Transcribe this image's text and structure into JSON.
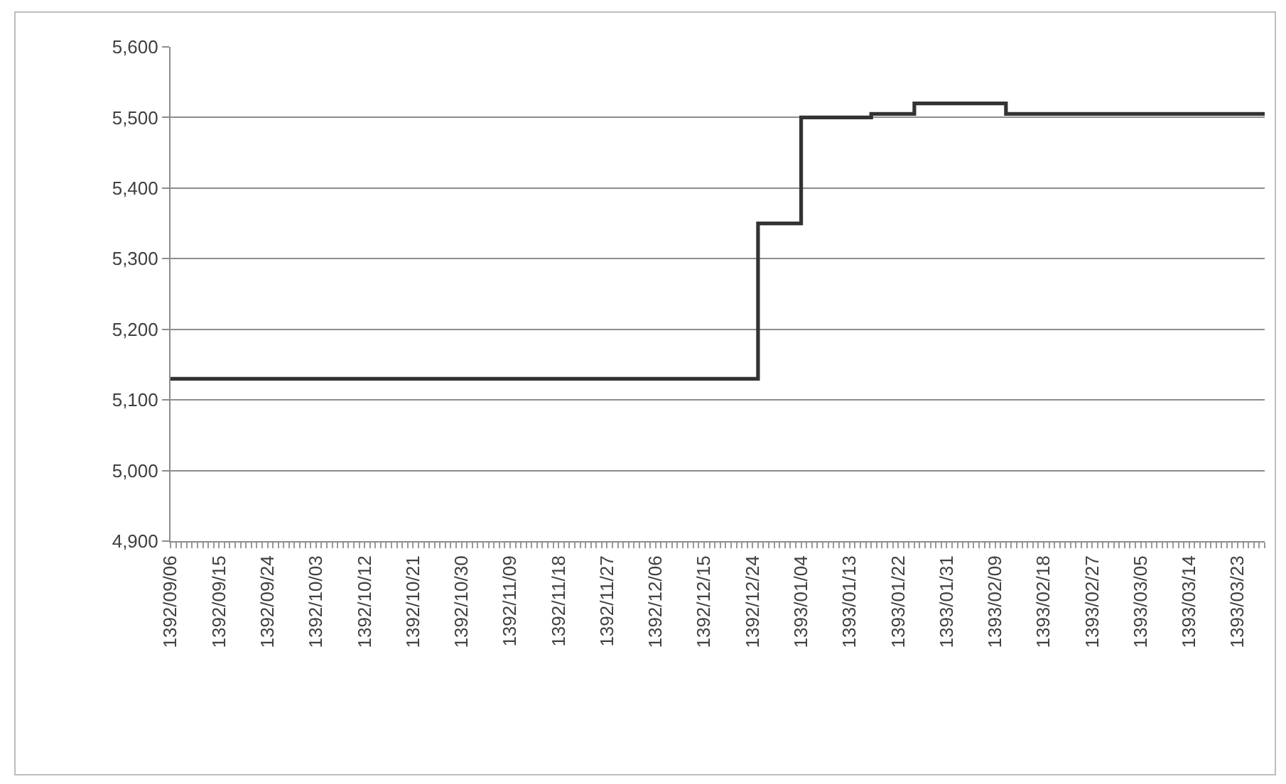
{
  "chart_data": {
    "type": "step",
    "color": "#333333",
    "grid": "y",
    "marker": "none",
    "line_style": "solid",
    "ylim": [
      4900,
      5600
    ],
    "yticks": [
      {
        "value": 4900,
        "label": "4,900"
      },
      {
        "value": 5000,
        "label": "5,000"
      },
      {
        "value": 5100,
        "label": "5,100"
      },
      {
        "value": 5200,
        "label": "5,200"
      },
      {
        "value": 5300,
        "label": "5,300"
      },
      {
        "value": 5400,
        "label": "5,400"
      },
      {
        "value": 5500,
        "label": "5,500"
      },
      {
        "value": 5600,
        "label": "5,600"
      }
    ],
    "categories": [
      "1392/09/06",
      null,
      null,
      null,
      null,
      null,
      null,
      null,
      null,
      "1392/09/15",
      null,
      null,
      null,
      null,
      null,
      null,
      null,
      null,
      "1392/09/24",
      null,
      null,
      null,
      null,
      null,
      null,
      null,
      null,
      "1392/10/03",
      null,
      null,
      null,
      null,
      null,
      null,
      null,
      null,
      "1392/10/12",
      null,
      null,
      null,
      null,
      null,
      null,
      null,
      null,
      "1392/10/21",
      null,
      null,
      null,
      null,
      null,
      null,
      null,
      null,
      "1392/10/30",
      null,
      null,
      null,
      null,
      null,
      null,
      null,
      null,
      "1392/11/09",
      null,
      null,
      null,
      null,
      null,
      null,
      null,
      null,
      "1392/11/18",
      null,
      null,
      null,
      null,
      null,
      null,
      null,
      null,
      "1392/11/27",
      null,
      null,
      null,
      null,
      null,
      null,
      null,
      null,
      "1392/12/06",
      null,
      null,
      null,
      null,
      null,
      null,
      null,
      null,
      "1392/12/15",
      null,
      null,
      null,
      null,
      null,
      null,
      null,
      null,
      "1392/12/24",
      null,
      null,
      null,
      null,
      null,
      null,
      null,
      null,
      "1393/01/04",
      null,
      null,
      null,
      null,
      null,
      null,
      null,
      null,
      "1393/01/13",
      null,
      null,
      null,
      null,
      null,
      null,
      null,
      null,
      "1393/01/22",
      null,
      null,
      null,
      null,
      null,
      null,
      null,
      null,
      "1393/01/31",
      null,
      null,
      null,
      null,
      null,
      null,
      null,
      null,
      "1393/02/09",
      null,
      null,
      null,
      null,
      null,
      null,
      null,
      null,
      "1393/02/18",
      null,
      null,
      null,
      null,
      null,
      null,
      null,
      null,
      "1393/02/27",
      null,
      null,
      null,
      null,
      null,
      null,
      null,
      null,
      "1393/03/05",
      null,
      null,
      null,
      null,
      null,
      null,
      null,
      null,
      "1393/03/14",
      null,
      null,
      null,
      null,
      null,
      null,
      null,
      null,
      "1393/03/23",
      null,
      null,
      null,
      null,
      null
    ],
    "values": [
      5130,
      5130,
      5130,
      5130,
      5130,
      5130,
      5130,
      5130,
      5130,
      5130,
      5130,
      5130,
      5130,
      5130,
      5130,
      5130,
      5130,
      5130,
      5130,
      5130,
      5130,
      5130,
      5130,
      5130,
      5130,
      5130,
      5130,
      5130,
      5130,
      5130,
      5130,
      5130,
      5130,
      5130,
      5130,
      5130,
      5130,
      5130,
      5130,
      5130,
      5130,
      5130,
      5130,
      5130,
      5130,
      5130,
      5130,
      5130,
      5130,
      5130,
      5130,
      5130,
      5130,
      5130,
      5130,
      5130,
      5130,
      5130,
      5130,
      5130,
      5130,
      5130,
      5130,
      5130,
      5130,
      5130,
      5130,
      5130,
      5130,
      5130,
      5130,
      5130,
      5130,
      5130,
      5130,
      5130,
      5130,
      5130,
      5130,
      5130,
      5130,
      5130,
      5130,
      5130,
      5130,
      5130,
      5130,
      5130,
      5130,
      5130,
      5130,
      5130,
      5130,
      5130,
      5130,
      5130,
      5130,
      5130,
      5130,
      5130,
      5130,
      5130,
      5130,
      5130,
      5130,
      5130,
      5130,
      5130,
      5130,
      5350,
      5350,
      5350,
      5350,
      5350,
      5350,
      5350,
      5350,
      5500,
      5500,
      5500,
      5500,
      5500,
      5500,
      5500,
      5500,
      5500,
      5500,
      5500,
      5500,
      5500,
      5505,
      5505,
      5505,
      5505,
      5505,
      5505,
      5505,
      5505,
      5520,
      5520,
      5520,
      5520,
      5520,
      5520,
      5520,
      5520,
      5520,
      5520,
      5520,
      5520,
      5520,
      5520,
      5520,
      5520,
      5520,
      5505,
      5505,
      5505,
      5505,
      5505,
      5505,
      5505,
      5505,
      5505,
      5505,
      5505,
      5505,
      5505,
      5505,
      5505,
      5505,
      5505,
      5505,
      5505,
      5505,
      5505,
      5505,
      5505,
      5505,
      5505,
      5505,
      5505,
      5505,
      5505,
      5505,
      5505,
      5505,
      5505,
      5505,
      5505,
      5505,
      5505,
      5505,
      5505,
      5505,
      5505,
      5505,
      5505,
      5505,
      5505,
      5505,
      5505,
      5505,
      5505
    ]
  }
}
